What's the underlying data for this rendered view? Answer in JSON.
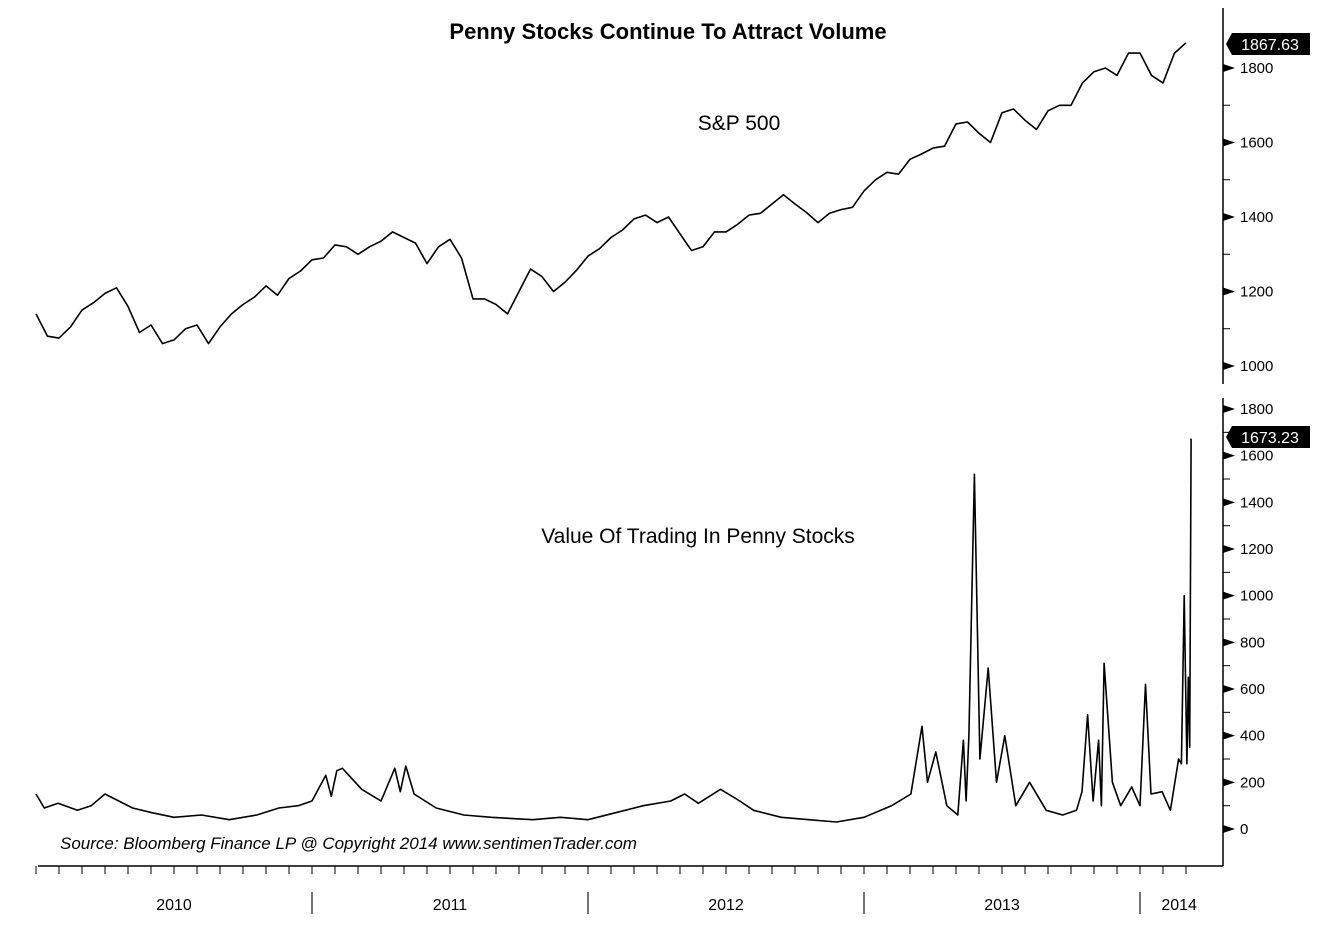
{
  "chart_data": [
    {
      "type": "line",
      "title": "Penny Stocks Continue To Attract Volume",
      "label": "S&P 500",
      "last_value_label": "1867.63",
      "ylim": [
        950,
        1900
      ],
      "yticks": [
        1000,
        1200,
        1400,
        1600,
        1800
      ],
      "ytick_labels": [
        "1000",
        "1200",
        "1400",
        "1600",
        "1800"
      ],
      "x_start": 2010.0,
      "x_step": 0.041667,
      "values": [
        1140,
        1080,
        1075,
        1105,
        1150,
        1170,
        1195,
        1210,
        1160,
        1090,
        1110,
        1060,
        1070,
        1100,
        1110,
        1060,
        1105,
        1140,
        1165,
        1185,
        1215,
        1190,
        1235,
        1255,
        1285,
        1290,
        1325,
        1320,
        1300,
        1320,
        1335,
        1360,
        1345,
        1330,
        1275,
        1320,
        1340,
        1290,
        1180,
        1180,
        1165,
        1140,
        1200,
        1260,
        1240,
        1200,
        1225,
        1257,
        1295,
        1315,
        1345,
        1365,
        1395,
        1405,
        1385,
        1400,
        1355,
        1310,
        1320,
        1360,
        1360,
        1380,
        1405,
        1410,
        1435,
        1460,
        1435,
        1412,
        1385,
        1410,
        1420,
        1426,
        1470,
        1500,
        1520,
        1515,
        1555,
        1569,
        1585,
        1590,
        1650,
        1655,
        1625,
        1600,
        1680,
        1690,
        1660,
        1635,
        1685,
        1700,
        1700,
        1760,
        1790,
        1800,
        1780,
        1840,
        1840,
        1780,
        1760,
        1840,
        1867.63
      ]
    },
    {
      "type": "line",
      "label": "Value Of Trading In Penny Stocks",
      "last_value_label": "1673.23",
      "ylim": [
        -100,
        1850
      ],
      "yticks": [
        0,
        200,
        400,
        600,
        800,
        1000,
        1200,
        1400,
        1600,
        1800
      ],
      "ytick_labels": [
        "0",
        "200",
        "400",
        "600",
        "800",
        "1000",
        "1200",
        "1400",
        "1600",
        "1800"
      ],
      "points": [
        [
          2010.0,
          150
        ],
        [
          2010.03,
          90
        ],
        [
          2010.08,
          110
        ],
        [
          2010.15,
          80
        ],
        [
          2010.2,
          100
        ],
        [
          2010.25,
          150
        ],
        [
          2010.3,
          120
        ],
        [
          2010.35,
          90
        ],
        [
          2010.42,
          70
        ],
        [
          2010.5,
          50
        ],
        [
          2010.6,
          60
        ],
        [
          2010.7,
          40
        ],
        [
          2010.8,
          60
        ],
        [
          2010.88,
          90
        ],
        [
          2010.95,
          100
        ],
        [
          2011.0,
          120
        ],
        [
          2011.05,
          230
        ],
        [
          2011.07,
          140
        ],
        [
          2011.09,
          250
        ],
        [
          2011.11,
          260
        ],
        [
          2011.18,
          170
        ],
        [
          2011.25,
          120
        ],
        [
          2011.3,
          260
        ],
        [
          2011.32,
          160
        ],
        [
          2011.34,
          270
        ],
        [
          2011.37,
          150
        ],
        [
          2011.45,
          90
        ],
        [
          2011.55,
          60
        ],
        [
          2011.65,
          50
        ],
        [
          2011.8,
          40
        ],
        [
          2011.9,
          50
        ],
        [
          2012.0,
          40
        ],
        [
          2012.1,
          70
        ],
        [
          2012.2,
          100
        ],
        [
          2012.3,
          120
        ],
        [
          2012.35,
          150
        ],
        [
          2012.4,
          110
        ],
        [
          2012.48,
          170
        ],
        [
          2012.55,
          120
        ],
        [
          2012.6,
          80
        ],
        [
          2012.7,
          50
        ],
        [
          2012.8,
          40
        ],
        [
          2012.9,
          30
        ],
        [
          2013.0,
          50
        ],
        [
          2013.1,
          100
        ],
        [
          2013.17,
          150
        ],
        [
          2013.21,
          440
        ],
        [
          2013.23,
          200
        ],
        [
          2013.26,
          330
        ],
        [
          2013.3,
          100
        ],
        [
          2013.34,
          60
        ],
        [
          2013.36,
          380
        ],
        [
          2013.37,
          120
        ],
        [
          2013.38,
          400
        ],
        [
          2013.4,
          1520
        ],
        [
          2013.42,
          300
        ],
        [
          2013.45,
          690
        ],
        [
          2013.48,
          200
        ],
        [
          2013.51,
          400
        ],
        [
          2013.55,
          100
        ],
        [
          2013.6,
          200
        ],
        [
          2013.66,
          80
        ],
        [
          2013.72,
          60
        ],
        [
          2013.77,
          80
        ],
        [
          2013.79,
          160
        ],
        [
          2013.81,
          490
        ],
        [
          2013.83,
          120
        ],
        [
          2013.85,
          380
        ],
        [
          2013.86,
          100
        ],
        [
          2013.87,
          710
        ],
        [
          2013.9,
          200
        ],
        [
          2013.93,
          100
        ],
        [
          2013.97,
          180
        ],
        [
          2014.0,
          100
        ],
        [
          2014.02,
          620
        ],
        [
          2014.04,
          150
        ],
        [
          2014.08,
          160
        ],
        [
          2014.11,
          80
        ],
        [
          2014.14,
          300
        ],
        [
          2014.15,
          280
        ],
        [
          2014.16,
          1000
        ],
        [
          2014.17,
          280
        ],
        [
          2014.175,
          650
        ],
        [
          2014.18,
          350
        ],
        [
          2014.185,
          1673.23
        ]
      ]
    }
  ],
  "x_axis": {
    "labels": [
      {
        "t": 2010.5,
        "text": "2010"
      },
      {
        "t": 2011.5,
        "text": "2011"
      },
      {
        "t": 2012.5,
        "text": "2012"
      },
      {
        "t": 2013.5,
        "text": "2013"
      },
      {
        "t": 2014.12,
        "text": "2014"
      }
    ],
    "separators": [
      2011,
      2012,
      2013,
      2014
    ]
  },
  "source": "Source:  Bloomberg Finance LP   @ Copyright 2014   www.sentimenTrader.com",
  "colors": {
    "line": "#000000",
    "label_bg": "#000000",
    "label_text": "#ffffff"
  }
}
